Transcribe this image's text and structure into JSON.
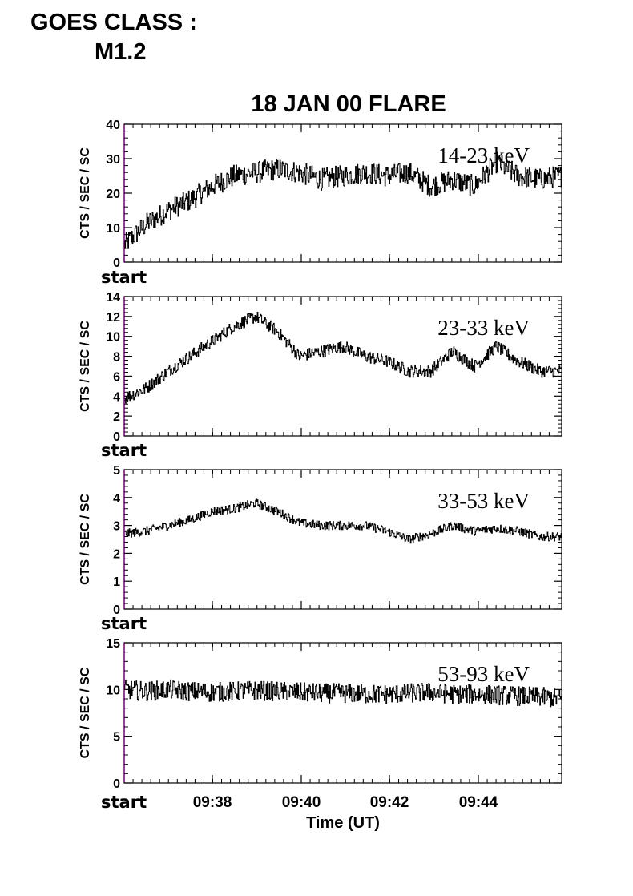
{
  "header": {
    "goes_label": "GOES CLASS :",
    "goes_value": "M1.2"
  },
  "chart_data": {
    "type": "line",
    "title": "18 JAN 00 FLARE",
    "xlabel": "Time (UT)",
    "x_tick_labels": [
      "09:38",
      "09:40",
      "09:42",
      "09:44"
    ],
    "x_minutes_range": [
      "09:35:40",
      "09:45:55"
    ],
    "start_label": "start",
    "panels": [
      {
        "name": "14-23 keV",
        "ylabel": "CTS / SEC / SC",
        "ylim": [
          0,
          40
        ],
        "yticks": [
          0,
          10,
          20,
          30,
          40
        ],
        "series_x": [
          0,
          0.5,
          1,
          1.5,
          2,
          2.5,
          3,
          3.5,
          4,
          4.5,
          5,
          5.5,
          6,
          6.5,
          7,
          7.5,
          8,
          8.5,
          9,
          9.5,
          10
        ],
        "series_y": [
          5,
          11,
          15,
          18,
          22,
          25,
          26,
          27,
          26,
          24,
          25,
          26,
          25,
          26,
          22,
          24,
          22,
          29,
          25,
          24,
          25
        ]
      },
      {
        "name": "23-33 keV",
        "ylabel": "CTS / SEC / SC",
        "ylim": [
          0,
          14
        ],
        "yticks": [
          0,
          2,
          4,
          6,
          8,
          10,
          12,
          14
        ],
        "series_x": [
          0,
          0.5,
          1,
          1.5,
          2,
          2.5,
          3,
          3.5,
          4,
          4.5,
          5,
          5.5,
          6,
          6.5,
          7,
          7.5,
          8,
          8.5,
          9,
          9.5,
          10
        ],
        "series_y": [
          3.8,
          4.8,
          6.5,
          8,
          9.5,
          11,
          12,
          10.5,
          8,
          8.5,
          9,
          8,
          7.5,
          6.5,
          6.5,
          8.5,
          7,
          9,
          7.5,
          6.5,
          6.5
        ]
      },
      {
        "name": "33-53 keV",
        "ylabel": "CTS / SEC / SC",
        "ylim": [
          0,
          5
        ],
        "yticks": [
          0,
          1,
          2,
          3,
          4,
          5
        ],
        "series_x": [
          0,
          0.5,
          1,
          1.5,
          2,
          2.5,
          3,
          3.5,
          4,
          4.5,
          5,
          5.5,
          6,
          6.5,
          7,
          7.5,
          8,
          8.5,
          9,
          9.5,
          10
        ],
        "series_y": [
          2.7,
          2.8,
          3,
          3.2,
          3.5,
          3.6,
          3.8,
          3.5,
          3.1,
          3,
          3,
          3,
          2.8,
          2.5,
          2.7,
          3,
          2.8,
          2.9,
          2.8,
          2.6,
          2.6
        ]
      },
      {
        "name": "53-93 keV",
        "ylabel": "CTS / SEC / SC",
        "ylim": [
          0,
          15
        ],
        "yticks": [
          0,
          5,
          10,
          15
        ],
        "series_x": [
          0,
          0.5,
          1,
          1.5,
          2,
          2.5,
          3,
          3.5,
          4,
          4.5,
          5,
          5.5,
          6,
          6.5,
          7,
          7.5,
          8,
          8.5,
          9,
          9.5,
          10
        ],
        "series_y": [
          10,
          9.8,
          10,
          9.8,
          9.7,
          9.8,
          9.9,
          9.8,
          9.7,
          9.6,
          9.6,
          9.5,
          9.5,
          9.6,
          9.7,
          9.5,
          9.5,
          9.4,
          9.3,
          9.2,
          9.0
        ]
      }
    ]
  },
  "colors": {
    "axis": "#000000",
    "left_axis_accent": "#8e1a8e",
    "line": "#000000"
  }
}
